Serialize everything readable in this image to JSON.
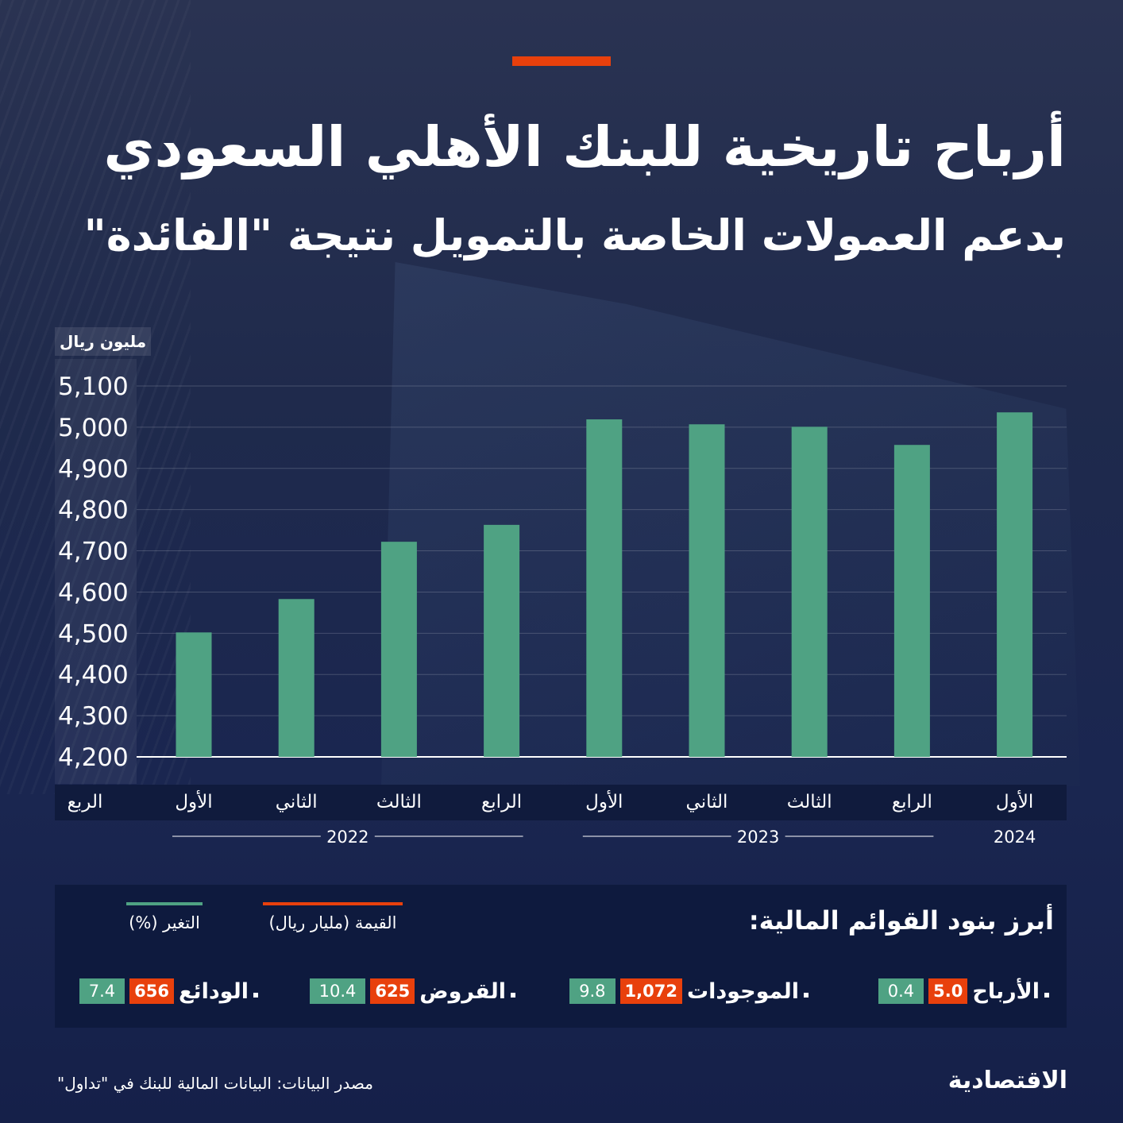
{
  "header": {
    "title": "أرباح تاريخية للبنك الأهلي السعودي",
    "subtitle": "بدعم العمولات الخاصة بالتمويل نتيجة \"الفائدة\""
  },
  "chart_data": {
    "type": "bar",
    "unit_label": "مليون ريال",
    "quarter_axis_label": "الربع",
    "categories": [
      "الأول",
      "الثاني",
      "الثالث",
      "الرابع",
      "الأول",
      "الثاني",
      "الثالث",
      "الرابع",
      "الأول"
    ],
    "years": [
      {
        "label": "2022",
        "span": 4
      },
      {
        "label": "2023",
        "span": 4
      },
      {
        "label": "2024",
        "span": 1
      }
    ],
    "values": [
      4502,
      4583,
      4722,
      4763,
      5019,
      5007,
      5001,
      4957,
      5036
    ],
    "ylim": [
      4200,
      5100
    ],
    "yticks": [
      5100,
      5000,
      4900,
      4800,
      4700,
      4600,
      4500,
      4400,
      4300,
      4200
    ],
    "ytick_labels": [
      "5,100",
      "5,000",
      "4,900",
      "4,800",
      "4,700",
      "4,600",
      "4,500",
      "4,400",
      "4,300",
      "4,200"
    ],
    "grid": true,
    "bar_color": "#4fa283"
  },
  "legend": {
    "title": "أبرز بنود القوائم المالية:",
    "value_key": "القيمة (مليار ريال)",
    "change_key": "التغير (%)",
    "items": [
      {
        "name": "الأرباح",
        "value": "5.0",
        "change": "0.4"
      },
      {
        "name": "الموجودات",
        "value": "1,072",
        "change": "9.8"
      },
      {
        "name": "القروض",
        "value": "625",
        "change": "10.4"
      },
      {
        "name": "الودائع",
        "value": "656",
        "change": "7.4"
      }
    ]
  },
  "footer": {
    "source": "مصدر البيانات: البيانات المالية للبنك في \"تداول\"",
    "logo": "الاقتصادية"
  },
  "colors": {
    "accent": "#e8400c",
    "bar": "#4fa283",
    "background": "#1f2a4c"
  }
}
